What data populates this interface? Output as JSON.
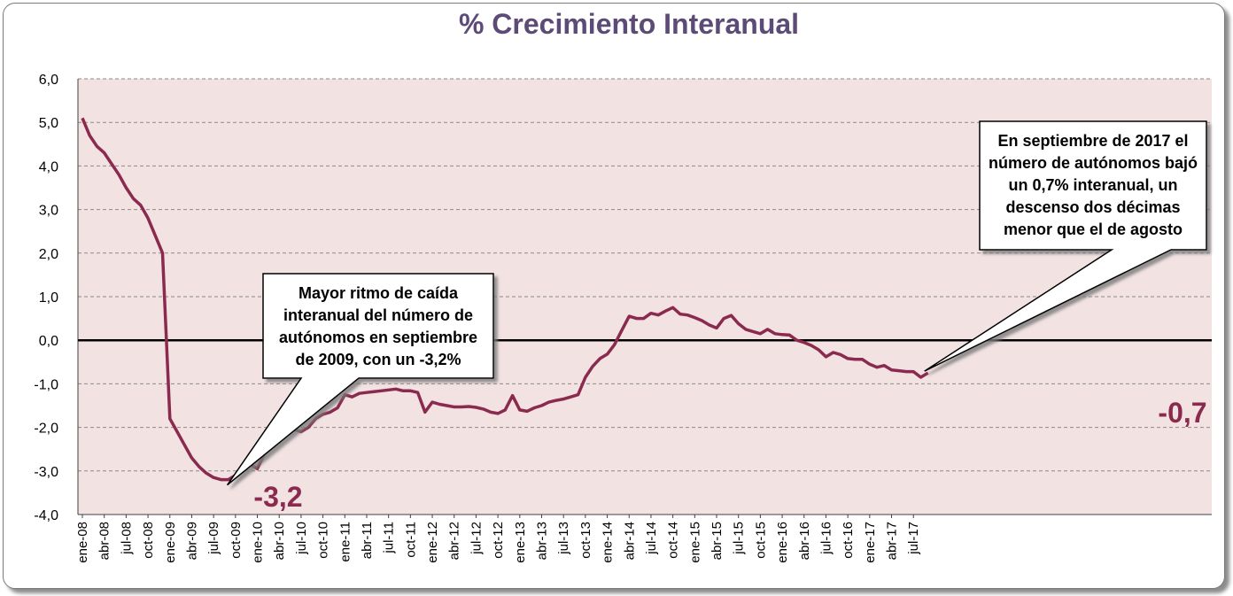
{
  "chart_data": {
    "type": "line",
    "title": "% Crecimiento Interanual",
    "xlabel": "",
    "ylabel": "",
    "ylim": [
      -4,
      6
    ],
    "yticks": [
      6,
      5,
      4,
      3,
      2,
      1,
      0,
      -1,
      -2,
      -3,
      -4
    ],
    "ytick_labels": [
      "6,0",
      "5,0",
      "4,0",
      "3,0",
      "2,0",
      "1,0",
      "0,0",
      "-1,0",
      "-2,0",
      "-3,0",
      "-4,0"
    ],
    "xtick_labels": [
      "ene-08",
      "abr-08",
      "jul-08",
      "oct-08",
      "ene-09",
      "abr-09",
      "jul-09",
      "oct-09",
      "ene-10",
      "abr-10",
      "jul-10",
      "oct-10",
      "ene-11",
      "abr-11",
      "jul-11",
      "oct-11",
      "ene-12",
      "abr-12",
      "jul-12",
      "oct-12",
      "ene-13",
      "abr-13",
      "jul-13",
      "oct-13",
      "ene-14",
      "abr-14",
      "jul-14",
      "oct-14",
      "ene-15",
      "abr-15",
      "jul-15",
      "oct-15",
      "ene-16",
      "abr-16",
      "jul-16",
      "oct-16",
      "ene-17",
      "abr-17",
      "jul-17"
    ],
    "grid": true,
    "plot_background": "#f2e2e2",
    "series": [
      {
        "color": "#8b2a4f",
        "start": "ene-08",
        "end": "sep-17",
        "values": [
          5.1,
          4.7,
          4.45,
          4.3,
          4.05,
          3.8,
          3.5,
          3.25,
          3.1,
          2.8,
          2.4,
          2.0,
          -1.8,
          -2.1,
          -2.4,
          -2.7,
          -2.9,
          -3.05,
          -3.15,
          -3.2,
          -3.2,
          -3.1,
          -3.0,
          -2.85,
          -2.95,
          -2.6,
          -2.4,
          -2.2,
          -2.05,
          -2.05,
          -2.1,
          -2.0,
          -1.8,
          -1.7,
          -1.65,
          -1.55,
          -1.25,
          -1.3,
          -1.22,
          -1.2,
          -1.18,
          -1.16,
          -1.14,
          -1.12,
          -1.16,
          -1.16,
          -1.2,
          -1.65,
          -1.42,
          -1.47,
          -1.5,
          -1.53,
          -1.53,
          -1.52,
          -1.54,
          -1.58,
          -1.65,
          -1.68,
          -1.6,
          -1.27,
          -1.6,
          -1.63,
          -1.55,
          -1.5,
          -1.42,
          -1.38,
          -1.35,
          -1.3,
          -1.25,
          -0.85,
          -0.6,
          -0.42,
          -0.32,
          -0.1,
          0.23,
          0.55,
          0.5,
          0.5,
          0.62,
          0.58,
          0.67,
          0.75,
          0.6,
          0.58,
          0.52,
          0.45,
          0.35,
          0.28,
          0.5,
          0.57,
          0.38,
          0.25,
          0.2,
          0.15,
          0.25,
          0.15,
          0.13,
          0.12,
          0.0,
          -0.05,
          -0.12,
          -0.22,
          -0.38,
          -0.28,
          -0.33,
          -0.42,
          -0.44,
          -0.44,
          -0.55,
          -0.62,
          -0.58,
          -0.68,
          -0.7,
          -0.72,
          -0.72,
          -0.85,
          -0.75
        ]
      }
    ],
    "annotations": [
      {
        "lines": [
          "Mayor ritmo de caída",
          "interanual del número de",
          "autónomos en septiembre",
          "de 2009, con un -3,2%"
        ],
        "point_label": "-3,2",
        "target": "sep-09"
      },
      {
        "lines": [
          "En septiembre de 2017 el",
          "número de autónomos bajó",
          "un 0,7% interanual, un",
          "descenso dos décimas",
          "menor que el de agosto"
        ],
        "point_label": "-0,7",
        "target": "sep-17"
      }
    ]
  }
}
